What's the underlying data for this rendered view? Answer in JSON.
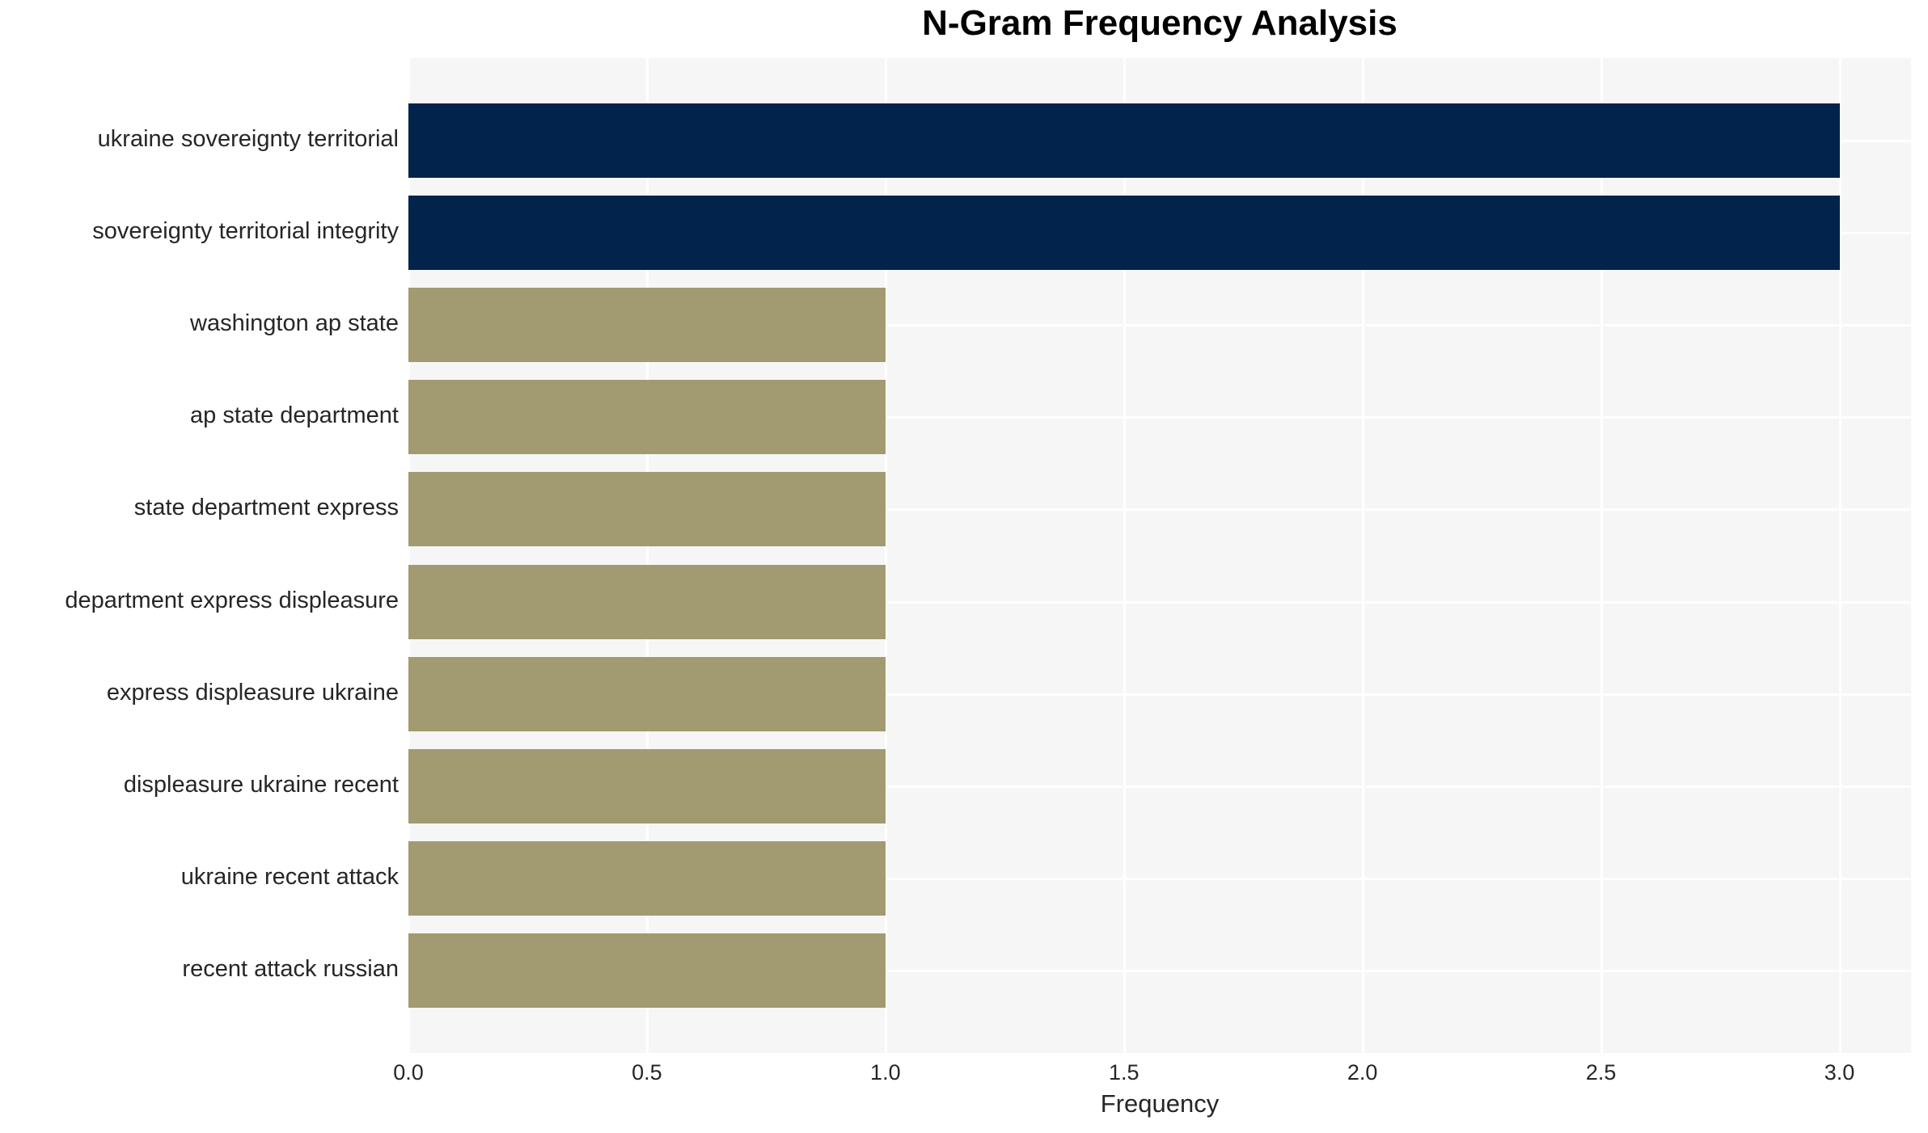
{
  "chart_data": {
    "type": "bar",
    "orientation": "horizontal",
    "title": "N-Gram Frequency Analysis",
    "xlabel": "Frequency",
    "ylabel": "",
    "categories": [
      "ukraine sovereignty territorial",
      "sovereignty territorial integrity",
      "washington ap state",
      "ap state department",
      "state department express",
      "department express displeasure",
      "express displeasure ukraine",
      "displeasure ukraine recent",
      "ukraine recent attack",
      "recent attack russian"
    ],
    "values": [
      3,
      3,
      1,
      1,
      1,
      1,
      1,
      1,
      1,
      1
    ],
    "bar_colors": [
      "#02234c",
      "#02234c",
      "#a29a70",
      "#a29a70",
      "#a29a70",
      "#a29a70",
      "#a29a70",
      "#a29a70",
      "#a29a70",
      "#a29a70"
    ],
    "xticks": [
      "0.0",
      "0.5",
      "1.0",
      "1.5",
      "2.0",
      "2.5",
      "3.0"
    ],
    "xtick_values": [
      0,
      0.5,
      1,
      1.5,
      2,
      2.5,
      3
    ],
    "xlim": [
      0,
      3.15
    ],
    "grid": true,
    "legend_visible": false,
    "colors": {
      "high_frequency_bar": "#02234c",
      "low_frequency_bar": "#a29a70",
      "plot_background": "#f6f6f7",
      "gridline": "#ffffff",
      "text": "#262626"
    }
  }
}
